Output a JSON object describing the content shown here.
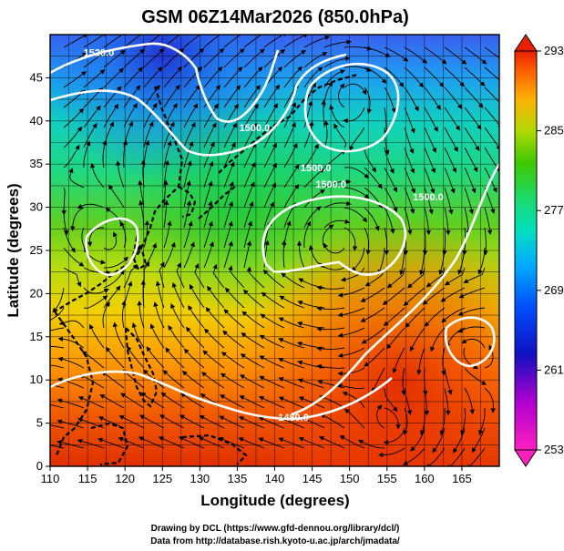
{
  "title": "GSM 06Z14Mar2026 (850.0hPa)",
  "x_axis": {
    "label": "Longitude (degrees)",
    "range": [
      110,
      170
    ],
    "ticks": [
      "110",
      "115",
      "120",
      "125",
      "130",
      "135",
      "140",
      "145",
      "150",
      "155",
      "160",
      "165"
    ],
    "tick_values": [
      110,
      115,
      120,
      125,
      130,
      135,
      140,
      145,
      150,
      155,
      160,
      165
    ]
  },
  "y_axis": {
    "label": "Latitude (degrees)",
    "range": [
      0,
      50
    ],
    "ticks": [
      "0",
      "5",
      "10",
      "15",
      "20",
      "25",
      "30",
      "35",
      "40",
      "45"
    ],
    "tick_values": [
      0,
      5,
      10,
      15,
      20,
      25,
      30,
      35,
      40,
      45
    ]
  },
  "colorbar": {
    "labels": [
      "293",
      "285",
      "277",
      "269",
      "261",
      "253"
    ],
    "min": 253,
    "max": 293,
    "colors": [
      "#ff00ff",
      "#a000c8",
      "#0000c0",
      "#0040ff",
      "#00a0ff",
      "#00e0e0",
      "#00e080",
      "#20c800",
      "#80d000",
      "#d0e000",
      "#ffd000",
      "#ff9000",
      "#f05000",
      "#e02000"
    ]
  },
  "contour_labels": [
    {
      "text": "1520.0",
      "lon": 116.5,
      "lat": 47.5
    },
    {
      "text": "1480.0",
      "lon": 142.5,
      "lat": 5.3
    },
    {
      "text": "1500.0",
      "lon": 145.5,
      "lat": 34.2
    },
    {
      "text": "1500.0",
      "lon": 147.5,
      "lat": 32.3
    },
    {
      "text": "1500.0",
      "lon": 137.3,
      "lat": 38.8
    },
    {
      "text": "1500.0",
      "lon": 160.5,
      "lat": 30.8
    }
  ],
  "credits": {
    "line1": "Drawing by DCL (https://www.gfd-dennou.org/library/dcl/)",
    "line2": "Data from http://database.rish.kyoto-u.ac.jp/arch/jmadata/"
  },
  "colors": {
    "contour": "#ffffff",
    "coastline": "#000000",
    "grid": "#000000",
    "streamline": "#000000"
  }
}
